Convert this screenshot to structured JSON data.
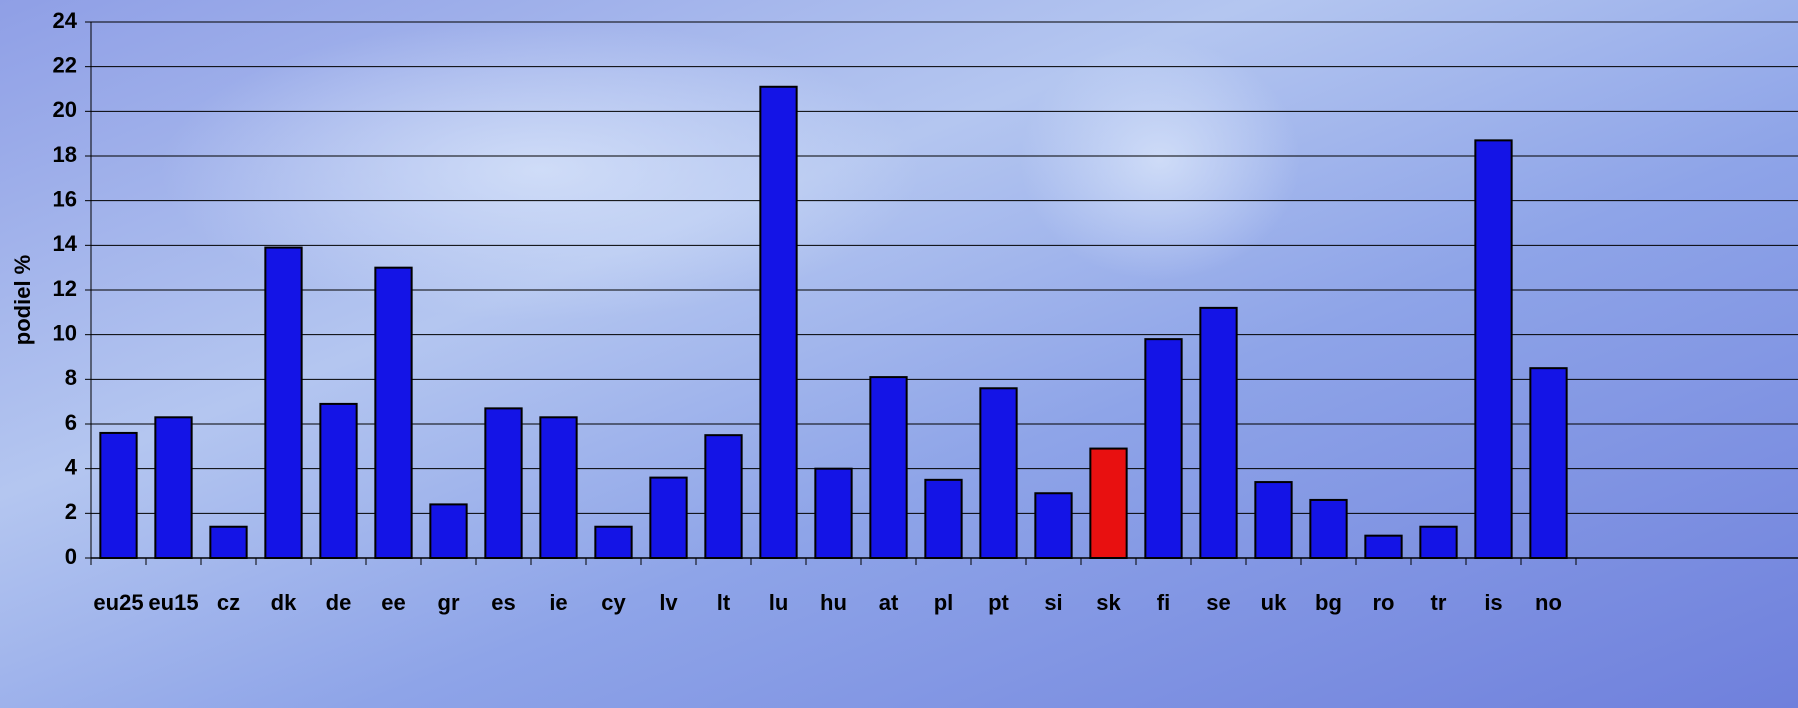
{
  "chart_data": {
    "type": "bar",
    "y_label": "podiel %",
    "categories": [
      "eu25",
      "eu15",
      "cz",
      "dk",
      "de",
      "ee",
      "gr",
      "es",
      "ie",
      "cy",
      "lv",
      "lt",
      "lu",
      "hu",
      "at",
      "pl",
      "pt",
      "si",
      "sk",
      "fi",
      "se",
      "uk",
      "bg",
      "ro",
      "tr",
      "is",
      "no"
    ],
    "values": [
      5.6,
      6.3,
      1.4,
      13.9,
      6.9,
      13.0,
      2.4,
      6.7,
      6.3,
      1.4,
      3.6,
      5.5,
      21.1,
      4.0,
      8.1,
      3.5,
      7.6,
      2.9,
      4.9,
      9.8,
      11.2,
      3.4,
      2.6,
      1.0,
      1.4,
      18.7,
      8.5
    ],
    "color": "#1414e6",
    "highlight": {
      "category": "sk",
      "color": "#e81010"
    },
    "ylim": [
      0,
      24
    ],
    "yticks": [
      0,
      2,
      4,
      6,
      8,
      10,
      12,
      14,
      16,
      18,
      20,
      22,
      24
    ],
    "grid": true
  }
}
